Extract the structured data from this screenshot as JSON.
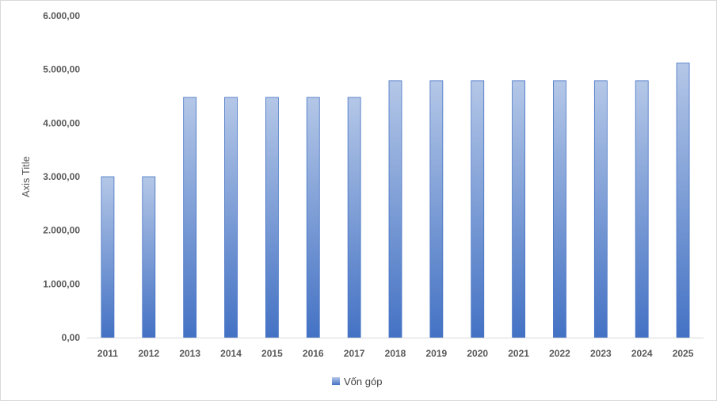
{
  "chart_data": {
    "type": "bar",
    "categories": [
      "2011",
      "2012",
      "2013",
      "2014",
      "2015",
      "2016",
      "2017",
      "2018",
      "2019",
      "2020",
      "2021",
      "2022",
      "2023",
      "2024",
      "2025"
    ],
    "series": [
      {
        "name": "Vốn góp",
        "values": [
          3000,
          3000,
          4480,
          4480,
          4480,
          4480,
          4480,
          4790,
          4790,
          4790,
          4790,
          4790,
          4790,
          4790,
          5120
        ]
      }
    ],
    "ylabel": "Axis Title",
    "xlabel": "",
    "ylim": [
      0,
      6000
    ],
    "yticks": [
      0,
      1000,
      2000,
      3000,
      4000,
      5000,
      6000
    ],
    "ytick_labels": [
      "0,00",
      "1.000,00",
      "2.000,00",
      "3.000,00",
      "4.000,00",
      "5.000,00",
      "6.000,00"
    ],
    "grid": false,
    "legend": "bottom",
    "colors": {
      "bar_top": "#b4c7e7",
      "bar_bottom": "#4472c4",
      "bar_border": "#4472c4",
      "axis": "#d9d9d9"
    }
  }
}
